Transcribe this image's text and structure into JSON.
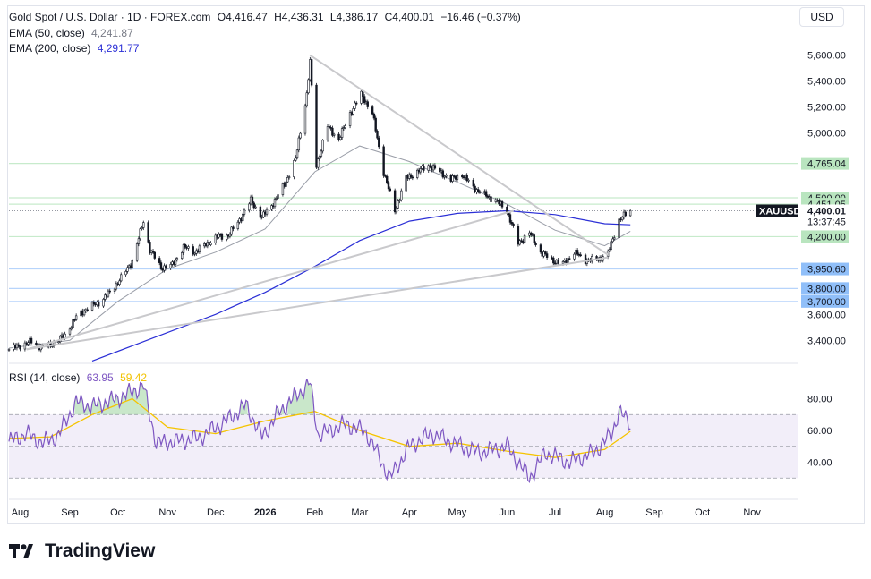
{
  "header": {
    "symbol_title": "Gold Spot / U.S. Dollar · 1D · FOREX.com",
    "open": "O4,416.47",
    "high": "H4,436.31",
    "low": "L4,386.17",
    "close": "C4,400.01",
    "change": "−16.46 (−0.37%)",
    "currency_button": "USD"
  },
  "indicators": {
    "ema50_label": "EMA (50, close)",
    "ema50_value": "4,241.87",
    "ema200_label": "EMA (200, close)",
    "ema200_value": "4,291.77",
    "rsi_label": "RSI (14, close)",
    "rsi_value": "63.95",
    "rsi_ma_value": "59.42"
  },
  "price_axis": {
    "ticks": [
      {
        "value": 5600,
        "label": "5,600.00"
      },
      {
        "value": 5400,
        "label": "5,400.00"
      },
      {
        "value": 5200,
        "label": "5,200.00"
      },
      {
        "value": 5000,
        "label": "5,000.00"
      },
      {
        "value": 3600,
        "label": "3,600.00"
      },
      {
        "value": 3400,
        "label": "3,400.00"
      }
    ],
    "level_labels": [
      {
        "value": 4765.04,
        "label": "4,765.04",
        "style": "green"
      },
      {
        "value": 4500,
        "label": "4,500.00",
        "style": "green"
      },
      {
        "value": 4451.05,
        "label": "4,451.05",
        "style": "green"
      },
      {
        "value": 4200,
        "label": "4,200.00",
        "style": "green"
      },
      {
        "value": 3950.6,
        "label": "3,950.60",
        "style": "blue"
      },
      {
        "value": 3800,
        "label": "3,800.00",
        "style": "blue"
      },
      {
        "value": 3700,
        "label": "3,700.00",
        "style": "blue"
      }
    ],
    "current_price": {
      "value": 4400.01,
      "label": "4,400.01",
      "ticker": "XAUUSD",
      "countdown": "13:37:45"
    }
  },
  "rsi_axis": {
    "ticks": [
      {
        "value": 80,
        "label": "80.00"
      },
      {
        "value": 60,
        "label": "60.00"
      },
      {
        "value": 40,
        "label": "40.00"
      }
    ]
  },
  "time_axis": [
    "Aug",
    "Sep",
    "Oct",
    "Nov",
    "Dec",
    "2026",
    "Feb",
    "Mar",
    "Apr",
    "May",
    "Jun",
    "Jul",
    "Aug",
    "Sep",
    "Oct",
    "Nov"
  ],
  "footer": {
    "brand": "TradingView"
  },
  "chart_data": {
    "type": "candlestick",
    "title": "Gold Spot / U.S. Dollar · 1D · FOREX.com",
    "ylim": [
      3250,
      5750
    ],
    "rsi_ylim": [
      20,
      100
    ],
    "price_path": [
      [
        "2025-07-25",
        3330
      ],
      [
        "2025-08-01",
        3360
      ],
      [
        "2025-08-08",
        3390
      ],
      [
        "2025-08-15",
        3340
      ],
      [
        "2025-08-22",
        3380
      ],
      [
        "2025-08-29",
        3440
      ],
      [
        "2025-09-05",
        3580
      ],
      [
        "2025-09-12",
        3650
      ],
      [
        "2025-09-19",
        3690
      ],
      [
        "2025-09-26",
        3770
      ],
      [
        "2025-10-03",
        3880
      ],
      [
        "2025-10-10",
        4010
      ],
      [
        "2025-10-17",
        4320
      ],
      [
        "2025-10-21",
        4100
      ],
      [
        "2025-10-28",
        3960
      ],
      [
        "2025-11-04",
        3980
      ],
      [
        "2025-11-11",
        4120
      ],
      [
        "2025-11-18",
        4080
      ],
      [
        "2025-11-25",
        4140
      ],
      [
        "2025-12-02",
        4200
      ],
      [
        "2025-12-09",
        4210
      ],
      [
        "2025-12-16",
        4330
      ],
      [
        "2025-12-23",
        4480
      ],
      [
        "2025-12-30",
        4350
      ],
      [
        "2026-01-06",
        4460
      ],
      [
        "2026-01-13",
        4600
      ],
      [
        "2026-01-20",
        4800
      ],
      [
        "2026-01-27",
        5300
      ],
      [
        "2026-01-29",
        5550
      ],
      [
        "2026-02-02",
        4750
      ],
      [
        "2026-02-09",
        5050
      ],
      [
        "2026-02-16",
        4950
      ],
      [
        "2026-02-23",
        5150
      ],
      [
        "2026-03-02",
        5300
      ],
      [
        "2026-03-09",
        5150
      ],
      [
        "2026-03-16",
        4700
      ],
      [
        "2026-03-23",
        4400
      ],
      [
        "2026-03-30",
        4650
      ],
      [
        "2026-04-06",
        4700
      ],
      [
        "2026-04-13",
        4750
      ],
      [
        "2026-04-20",
        4700
      ],
      [
        "2026-04-27",
        4640
      ],
      [
        "2026-05-04",
        4680
      ],
      [
        "2026-05-11",
        4580
      ],
      [
        "2026-05-18",
        4520
      ],
      [
        "2026-05-25",
        4480
      ],
      [
        "2026-06-01",
        4400
      ],
      [
        "2026-06-08",
        4150
      ],
      [
        "2026-06-15",
        4230
      ],
      [
        "2026-06-22",
        4080
      ],
      [
        "2026-06-29",
        4020
      ],
      [
        "2026-07-06",
        3990
      ],
      [
        "2026-07-13",
        4080
      ],
      [
        "2026-07-20",
        4020
      ],
      [
        "2026-07-27",
        4020
      ],
      [
        "2026-08-03",
        4070
      ],
      [
        "2026-08-10",
        4330
      ],
      [
        "2026-08-17",
        4400
      ]
    ],
    "ema50": [
      [
        "2025-07-25",
        3340
      ],
      [
        "2025-09-01",
        3400
      ],
      [
        "2025-10-01",
        3700
      ],
      [
        "2025-11-01",
        3950
      ],
      [
        "2025-12-01",
        4080
      ],
      [
        "2026-01-01",
        4260
      ],
      [
        "2026-02-01",
        4700
      ],
      [
        "2026-03-01",
        4900
      ],
      [
        "2026-04-01",
        4780
      ],
      [
        "2026-05-01",
        4620
      ],
      [
        "2026-06-01",
        4450
      ],
      [
        "2026-07-01",
        4250
      ],
      [
        "2026-08-01",
        4130
      ],
      [
        "2026-08-17",
        4241.87
      ]
    ],
    "ema200": [
      [
        "2025-09-15",
        3240
      ],
      [
        "2025-11-01",
        3460
      ],
      [
        "2025-12-01",
        3600
      ],
      [
        "2026-01-01",
        3770
      ],
      [
        "2026-02-01",
        3970
      ],
      [
        "2026-03-01",
        4170
      ],
      [
        "2026-04-01",
        4320
      ],
      [
        "2026-05-01",
        4380
      ],
      [
        "2026-06-01",
        4400
      ],
      [
        "2026-07-01",
        4370
      ],
      [
        "2026-08-01",
        4300
      ],
      [
        "2026-08-17",
        4291.77
      ]
    ],
    "rsi": [
      [
        "2025-07-25",
        53
      ],
      [
        "2025-08-05",
        58
      ],
      [
        "2025-08-15",
        52
      ],
      [
        "2025-08-25",
        57
      ],
      [
        "2025-09-05",
        78
      ],
      [
        "2025-09-15",
        75
      ],
      [
        "2025-10-01",
        80
      ],
      [
        "2025-10-17",
        88
      ],
      [
        "2025-10-25",
        52
      ],
      [
        "2025-11-05",
        53
      ],
      [
        "2025-11-20",
        55
      ],
      [
        "2025-12-05",
        64
      ],
      [
        "2025-12-20",
        76
      ],
      [
        "2025-12-30",
        56
      ],
      [
        "2026-01-10",
        72
      ],
      [
        "2026-01-29",
        90
      ],
      [
        "2026-02-03",
        57
      ],
      [
        "2026-02-20",
        64
      ],
      [
        "2026-03-05",
        59
      ],
      [
        "2026-03-20",
        30
      ],
      [
        "2026-04-01",
        50
      ],
      [
        "2026-04-15",
        58
      ],
      [
        "2026-05-01",
        51
      ],
      [
        "2026-05-15",
        46
      ],
      [
        "2026-06-01",
        50
      ],
      [
        "2026-06-15",
        30
      ],
      [
        "2026-06-25",
        46
      ],
      [
        "2026-07-10",
        40
      ],
      [
        "2026-07-25",
        46
      ],
      [
        "2026-08-05",
        57
      ],
      [
        "2026-08-10",
        72
      ],
      [
        "2026-08-17",
        63.95
      ]
    ],
    "rsi_ma": [
      [
        "2025-07-25",
        55
      ],
      [
        "2025-08-20",
        56
      ],
      [
        "2025-09-15",
        70
      ],
      [
        "2025-10-10",
        80
      ],
      [
        "2025-11-01",
        62
      ],
      [
        "2025-12-01",
        58
      ],
      [
        "2026-01-01",
        66
      ],
      [
        "2026-02-01",
        72
      ],
      [
        "2026-03-01",
        60
      ],
      [
        "2026-04-01",
        50
      ],
      [
        "2026-05-01",
        52
      ],
      [
        "2026-06-01",
        47
      ],
      [
        "2026-07-01",
        43
      ],
      [
        "2026-08-01",
        48
      ],
      [
        "2026-08-17",
        59.42
      ]
    ],
    "rsi_bands": {
      "upper": 70,
      "middle": 50,
      "lower": 30
    },
    "trendlines": [
      {
        "from": [
          "2026-01-29",
          5600
        ],
        "to": [
          "2026-08-03",
          4060
        ]
      },
      {
        "from": [
          "2025-08-05",
          3330
        ],
        "to": [
          "2026-06-05",
          4400
        ]
      },
      {
        "from": [
          "2025-08-05",
          3330
        ],
        "to": [
          "2026-08-03",
          4040
        ]
      }
    ],
    "horizontal_levels": [
      4765.04,
      4500,
      4451.05,
      4200,
      3950.6,
      3800,
      3700
    ]
  }
}
